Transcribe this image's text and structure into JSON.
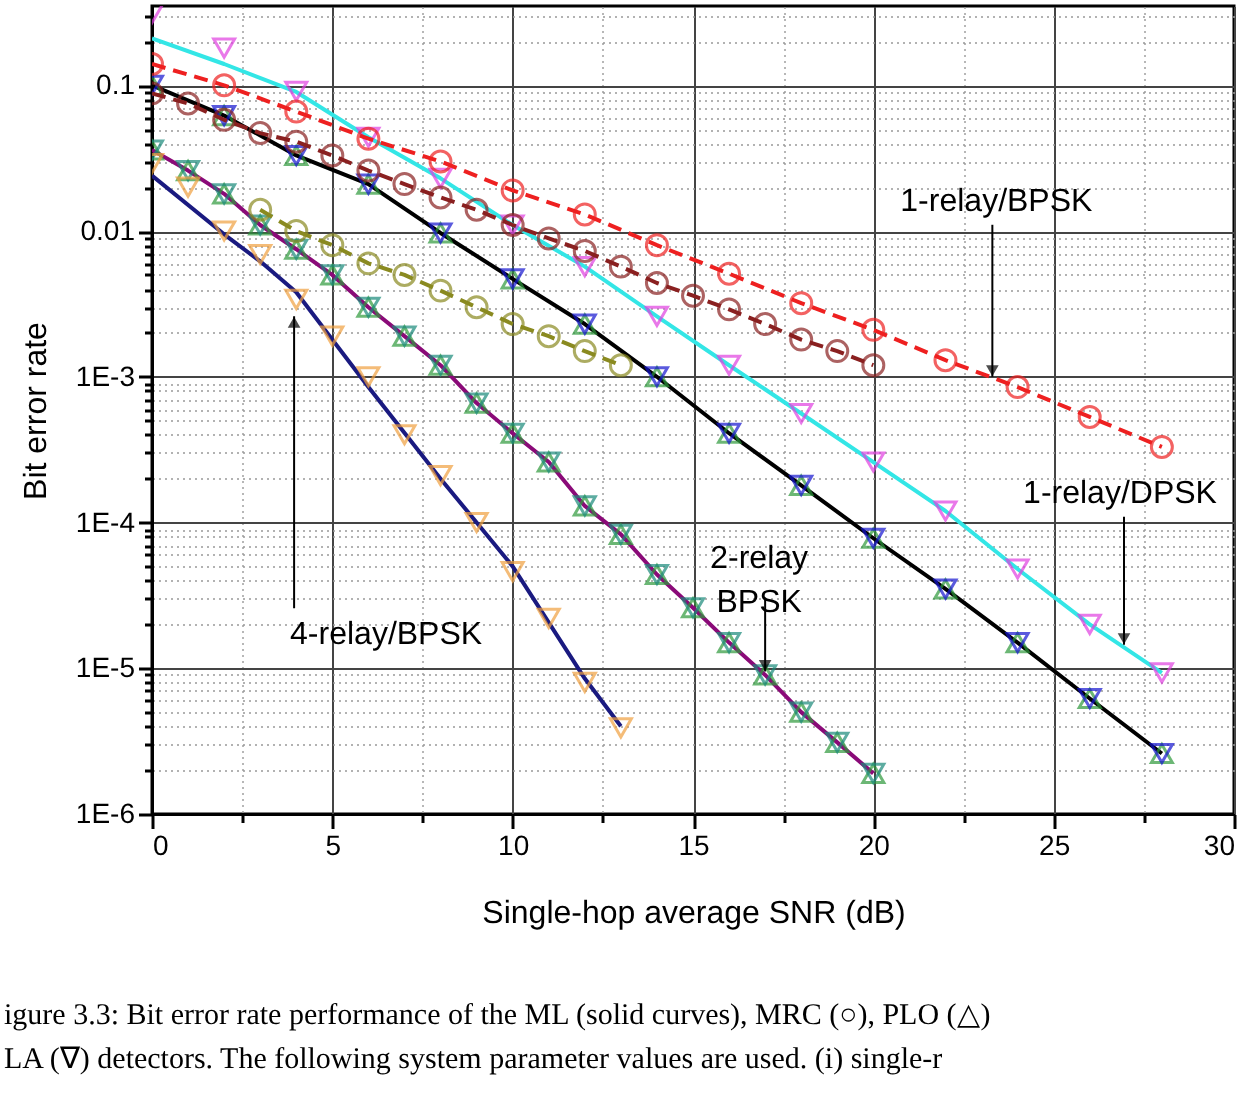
{
  "chart_data": {
    "type": "line",
    "xlabel": "Single-hop average SNR (dB)",
    "ylabel": "Bit error rate",
    "log": "y",
    "grid": true,
    "xlim": [
      0,
      30
    ],
    "ylim": [
      1e-06,
      0.35
    ],
    "xticks": [
      0,
      {
        "value": 2.5,
        "label": null
      },
      5,
      {
        "value": 7.5,
        "label": null
      },
      10,
      {
        "value": 12.5,
        "label": null
      },
      15,
      {
        "value": 17.5,
        "label": null
      },
      20,
      {
        "value": 22.5,
        "label": null
      },
      25,
      {
        "value": 27.5,
        "label": null
      },
      30
    ],
    "yticks": [
      {
        "value": 1e-06,
        "label": "1E-6"
      },
      {
        "value": 2e-06,
        "label": null
      },
      {
        "value": 3e-06,
        "label": null
      },
      {
        "value": 4e-06,
        "label": null
      },
      {
        "value": 5e-06,
        "label": null
      },
      {
        "value": 6e-06,
        "label": null
      },
      {
        "value": 7e-06,
        "label": null
      },
      {
        "value": 8e-06,
        "label": null
      },
      {
        "value": 9e-06,
        "label": null
      },
      {
        "value": 1e-05,
        "label": "1E-5"
      },
      {
        "value": 2e-05,
        "label": null
      },
      {
        "value": 3e-05,
        "label": null
      },
      {
        "value": 4e-05,
        "label": null
      },
      {
        "value": 5e-05,
        "label": null
      },
      {
        "value": 6e-05,
        "label": null
      },
      {
        "value": 7e-05,
        "label": null
      },
      {
        "value": 8e-05,
        "label": null
      },
      {
        "value": 9e-05,
        "label": null
      },
      {
        "value": 0.0001,
        "label": "1E-4"
      },
      {
        "value": 0.0002,
        "label": null
      },
      {
        "value": 0.0003,
        "label": null
      },
      {
        "value": 0.0004,
        "label": null
      },
      {
        "value": 0.0005,
        "label": null
      },
      {
        "value": 0.0006,
        "label": null
      },
      {
        "value": 0.0007,
        "label": null
      },
      {
        "value": 0.0008,
        "label": null
      },
      {
        "value": 0.0009,
        "label": null
      },
      {
        "value": 0.001,
        "label": "1E-3"
      },
      {
        "value": 0.002,
        "label": null
      },
      {
        "value": 0.003,
        "label": null
      },
      {
        "value": 0.004,
        "label": null
      },
      {
        "value": 0.005,
        "label": null
      },
      {
        "value": 0.006,
        "label": null
      },
      {
        "value": 0.007,
        "label": null
      },
      {
        "value": 0.008,
        "label": null
      },
      {
        "value": 0.009,
        "label": null
      },
      0.01,
      {
        "value": 0.02,
        "label": null
      },
      {
        "value": 0.03,
        "label": null
      },
      {
        "value": 0.04,
        "label": null
      },
      {
        "value": 0.05,
        "label": null
      },
      {
        "value": 0.06,
        "label": null
      },
      {
        "value": 0.07,
        "label": null
      },
      {
        "value": 0.08,
        "label": null
      },
      {
        "value": 0.09,
        "label": null
      },
      0.1,
      {
        "value": 0.2,
        "label": null
      },
      {
        "value": 0.3,
        "label": null
      }
    ],
    "series": [
      {
        "type": "line",
        "color": "#000000",
        "marker": "none",
        "x": [
          0,
          2,
          4,
          6,
          8,
          10,
          12,
          14,
          16,
          18,
          20,
          22,
          24,
          26,
          28
        ],
        "values": [
          0.1,
          0.062,
          0.033,
          0.021,
          0.0097,
          0.0047,
          0.0023,
          0.001,
          0.00041,
          0.00018,
          7.8e-05,
          3.5e-05,
          1.5e-05,
          6.2e-06,
          2.6e-06
        ]
      },
      {
        "type": "scatter",
        "color": "#2e9a3c",
        "marker": "triangle",
        "x": [
          0,
          2,
          4,
          6,
          8,
          10,
          12,
          14,
          16,
          18,
          20,
          22,
          24,
          26,
          28
        ],
        "values": [
          0.1,
          0.062,
          0.033,
          0.021,
          0.0097,
          0.0047,
          0.0023,
          0.001,
          0.00041,
          0.00018,
          7.8e-05,
          3.5e-05,
          1.5e-05,
          6.2e-06,
          2.6e-06
        ]
      },
      {
        "type": "scatter",
        "color": "#1515d0",
        "marker": "triangle-down",
        "x": [
          0,
          2,
          4,
          6,
          8,
          10,
          12,
          14,
          16,
          18,
          20,
          22,
          24,
          26,
          28
        ],
        "values": [
          0.1,
          0.062,
          0.033,
          0.021,
          0.0097,
          0.0047,
          0.0023,
          0.001,
          0.00041,
          0.00018,
          7.8e-05,
          3.5e-05,
          1.5e-05,
          6.2e-06,
          2.6e-06
        ]
      },
      {
        "type": "line",
        "color": "#33e6e6",
        "marker": "none",
        "x": [
          0,
          2,
          4,
          6,
          8,
          10,
          12,
          14,
          16,
          18,
          20,
          22,
          24,
          26,
          28
        ],
        "values": [
          0.21,
          0.14,
          0.09,
          0.044,
          0.023,
          0.011,
          0.0057,
          0.0026,
          0.0012,
          0.00056,
          0.00026,
          0.00012,
          4.8e-05,
          2e-05,
          9.3e-06
        ]
      },
      {
        "type": "scatter",
        "color": "#e040e0",
        "marker": "triangle-down",
        "x": [
          0,
          2,
          4,
          6,
          8,
          10,
          12,
          14,
          16,
          18,
          20,
          22,
          24,
          26,
          28
        ],
        "values": [
          0.31,
          0.18,
          0.091,
          0.044,
          0.023,
          0.011,
          0.0057,
          0.0026,
          0.0012,
          0.00056,
          0.00026,
          0.00012,
          4.8e-05,
          2e-05,
          9.3e-06
        ]
      },
      {
        "type": "line",
        "color": "#ee2020",
        "marker": "circle",
        "line_style": "dashed",
        "x": [
          0,
          2,
          4,
          6,
          8,
          10,
          12,
          14,
          16,
          18,
          20,
          22,
          24,
          26,
          28
        ],
        "values": [
          0.14,
          0.1,
          0.066,
          0.043,
          0.03,
          0.019,
          0.013,
          0.008,
          0.0051,
          0.0032,
          0.0021,
          0.0013,
          0.00085,
          0.00053,
          0.00033
        ]
      },
      {
        "type": "line",
        "color": "#8a2020",
        "marker": "circle",
        "line_style": "dashed",
        "x": [
          0,
          1,
          2,
          3,
          4,
          5,
          6,
          7,
          8,
          9,
          10,
          11,
          12,
          13,
          14,
          15,
          16,
          17,
          18,
          19,
          20
        ],
        "values": [
          0.088,
          0.075,
          0.058,
          0.047,
          0.041,
          0.033,
          0.026,
          0.021,
          0.017,
          0.014,
          0.011,
          0.0089,
          0.0073,
          0.0057,
          0.0044,
          0.0036,
          0.0029,
          0.0023,
          0.0018,
          0.0015,
          0.0012
        ]
      },
      {
        "type": "line",
        "color": "#8a0a78",
        "marker": "none",
        "x": [
          0,
          1,
          2,
          3,
          4,
          5,
          6,
          7,
          8,
          9,
          10,
          11,
          12,
          13,
          14,
          15,
          16,
          17,
          18,
          19,
          20
        ],
        "values": [
          0.036,
          0.026,
          0.018,
          0.011,
          0.0075,
          0.005,
          0.003,
          0.0019,
          0.0012,
          0.00066,
          0.00041,
          0.00026,
          0.00013,
          8.3e-05,
          4.4e-05,
          2.6e-05,
          1.5e-05,
          9e-06,
          5e-06,
          3.1e-06,
          1.9e-06
        ]
      },
      {
        "type": "scatter",
        "color": "#2e9a3c",
        "marker": "triangle",
        "x": [
          0,
          1,
          2,
          3,
          4,
          5,
          6,
          7,
          8,
          9,
          10,
          11,
          12,
          13,
          14,
          15,
          16,
          17,
          18,
          19,
          20
        ],
        "values": [
          0.036,
          0.026,
          0.018,
          0.011,
          0.0075,
          0.005,
          0.003,
          0.0019,
          0.0012,
          0.00066,
          0.00041,
          0.00026,
          0.00013,
          8.3e-05,
          4.4e-05,
          2.6e-05,
          1.5e-05,
          9e-06,
          5e-06,
          3.1e-06,
          1.9e-06
        ]
      },
      {
        "type": "scatter",
        "color": "#1a8a7a",
        "marker": "triangle-down",
        "x": [
          0,
          1,
          2,
          3,
          4,
          5,
          6,
          7,
          8,
          9,
          10,
          11,
          12,
          13,
          14,
          15,
          16,
          17,
          18,
          19,
          20
        ],
        "values": [
          0.036,
          0.026,
          0.018,
          0.011,
          0.0075,
          0.005,
          0.003,
          0.0019,
          0.0012,
          0.00066,
          0.00041,
          0.00026,
          0.00013,
          8.3e-05,
          4.4e-05,
          2.6e-05,
          1.5e-05,
          9e-06,
          5e-06,
          3.1e-06,
          1.9e-06
        ]
      },
      {
        "type": "line",
        "color": "#8a8a20",
        "marker": "circle",
        "line_style": "dashed",
        "x": [
          3,
          4,
          5,
          6,
          7,
          8,
          9,
          10,
          11,
          12,
          13
        ],
        "values": [
          0.014,
          0.01,
          0.008,
          0.006,
          0.005,
          0.0039,
          0.003,
          0.0023,
          0.0019,
          0.0015,
          0.0012
        ]
      },
      {
        "type": "line",
        "color": "#1a1a80",
        "marker": "none",
        "x": [
          0,
          2,
          3,
          4,
          6,
          8,
          10,
          12,
          13
        ],
        "values": [
          0.024,
          0.0095,
          0.0062,
          0.0038,
          0.00085,
          0.0002,
          5e-05,
          8.5e-06,
          4e-06
        ]
      },
      {
        "type": "scatter",
        "color": "#f0a040",
        "marker": "triangle-down",
        "x": [
          0,
          1,
          2,
          3,
          4,
          5,
          6,
          7,
          8,
          9,
          10,
          11,
          12,
          13
        ],
        "values": [
          0.029,
          0.02,
          0.01,
          0.0069,
          0.0034,
          0.0019,
          0.001,
          0.0004,
          0.00021,
          0.0001,
          4.6e-05,
          2.2e-05,
          8e-06,
          3.9e-06
        ]
      }
    ],
    "annotations": [
      {
        "text": "1-relay/BPSK",
        "x": 23.3,
        "y": 0.001
      },
      {
        "text": "1-relay/DPSK",
        "x": 26.95,
        "y": 1.45e-05
      },
      {
        "text": "2-relay\nBPSK",
        "x": 17,
        "y": 9.5e-06
      },
      {
        "text": "4-relay/BPSK",
        "x": 3.94,
        "y": 0.0026
      },
      "igure 3.3: Bit error rate performance of the ML (solid curves), MRC (○), PLO (△)",
      "LA (∇) detectors. The following system parameter values are used. (i) single-r"
    ]
  }
}
